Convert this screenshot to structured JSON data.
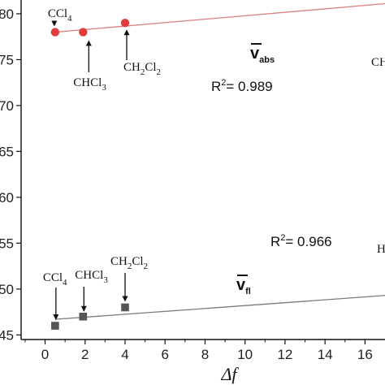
{
  "chart_data": {
    "type": "scatter",
    "xlabel": "Δf",
    "xlim": [
      -1.2,
      17
    ],
    "ylim": [
      44.5,
      81.5
    ],
    "x_ticks": [
      0,
      2,
      4,
      6,
      8,
      10,
      12,
      14,
      16
    ],
    "y_tick_labels": [
      {
        "value": 80,
        "text": "80"
      },
      {
        "value": 75,
        "text": "75"
      },
      {
        "value": 70,
        "text": "70"
      },
      {
        "value": 65,
        "text": "65"
      },
      {
        "value": 60,
        "text": "60"
      },
      {
        "value": 55,
        "text": "55"
      },
      {
        "value": 50,
        "text": "50"
      },
      {
        "value": 45,
        "text": "45"
      }
    ],
    "series": [
      {
        "label_main": "v",
        "label_sub": "abs",
        "color": "#e03c3c",
        "line_color": "#d98080",
        "marker": "circle",
        "points": [
          {
            "x": 0.5,
            "y": 78.0,
            "label": "CCl",
            "label_sub": "4"
          },
          {
            "x": 1.9,
            "y": 78.0,
            "label": "CHCl",
            "label_sub": "3"
          },
          {
            "x": 4.0,
            "y": 79.0,
            "label": "CH",
            "label_sub": "2",
            "label2": "Cl",
            "label2_sub": "2"
          }
        ],
        "fit": {
          "x": [
            0.5,
            17
          ],
          "y": [
            78.0,
            81.1
          ]
        },
        "r2": "R",
        "r2_sup": "2",
        "r2_value": "= 0.989",
        "cut_label": "CH"
      },
      {
        "label_main": "v",
        "label_sub": "fl",
        "color": "#555555",
        "line_color": "#7a7a7a",
        "marker": "square",
        "points": [
          {
            "x": 0.5,
            "y": 46.0,
            "label": "CCl",
            "label_sub": "4"
          },
          {
            "x": 1.9,
            "y": 47.0,
            "label": "CHCl",
            "label_sub": "3"
          },
          {
            "x": 4.0,
            "y": 48.0,
            "label": "CH",
            "label_sub": "2",
            "label2": "Cl",
            "label2_sub": "2"
          }
        ],
        "fit": {
          "x": [
            0.5,
            17
          ],
          "y": [
            46.7,
            49.3
          ]
        },
        "r2": "R",
        "r2_sup": "2",
        "r2_value": "= 0.966",
        "cut_label": "H"
      }
    ]
  }
}
